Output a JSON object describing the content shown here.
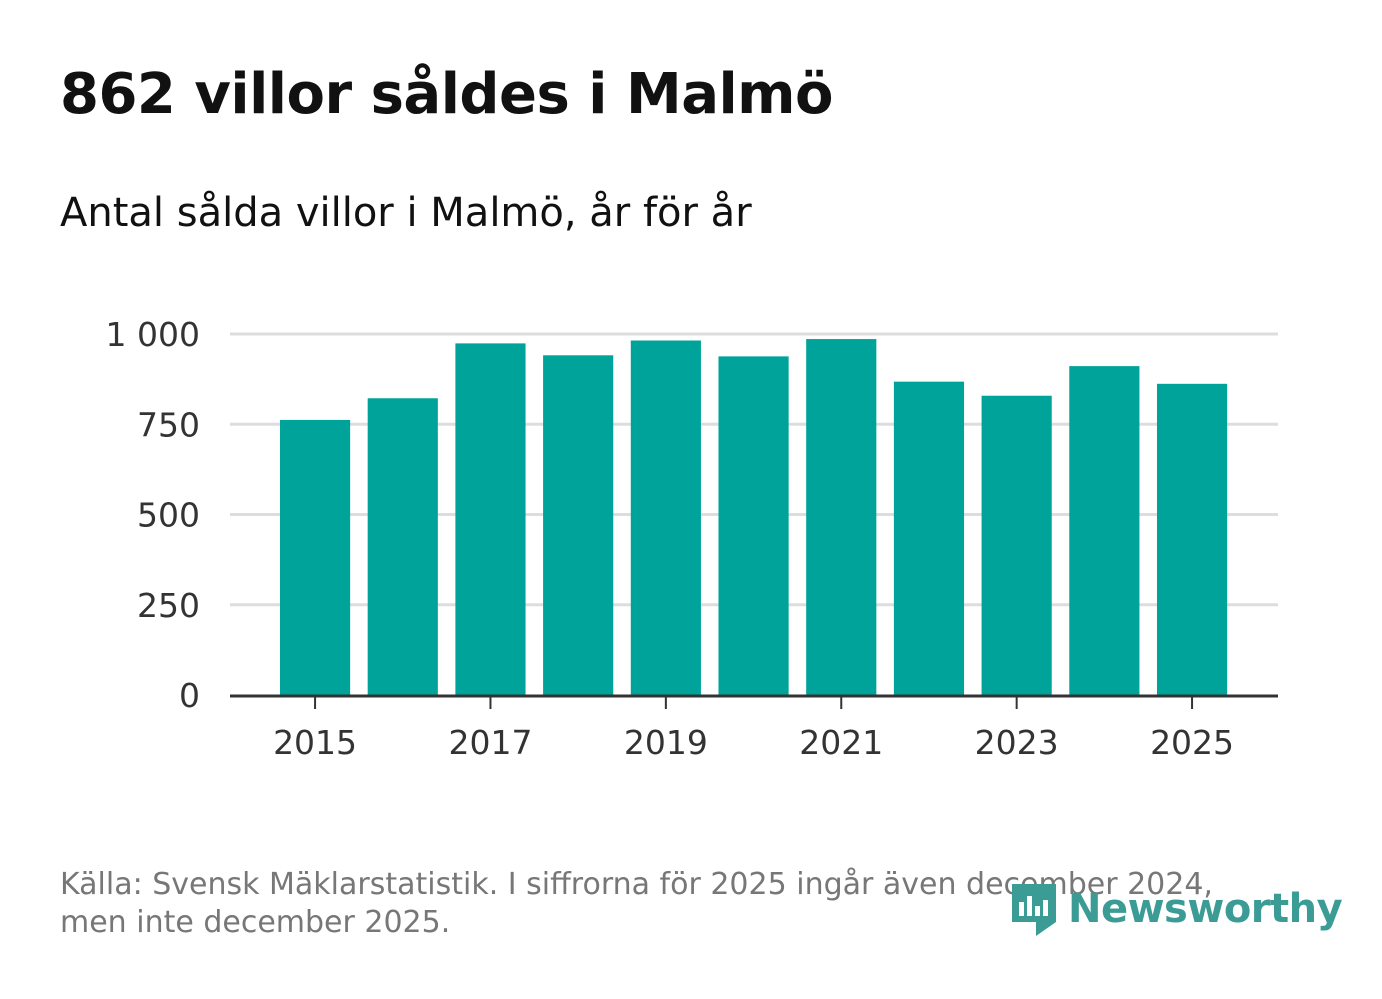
{
  "header": {
    "title": "862 villor såldes i Malmö",
    "subtitle": "Antal sålda villor i Malmö, år för år"
  },
  "chart_data": {
    "type": "bar",
    "title": "862 villor såldes i Malmö",
    "subtitle": "Antal sålda villor i Malmö, år för år",
    "categories": [
      "2015",
      "2016",
      "2017",
      "2018",
      "2019",
      "2020",
      "2021",
      "2022",
      "2023",
      "2024",
      "2025"
    ],
    "values": [
      762,
      822,
      974,
      941,
      982,
      938,
      986,
      868,
      829,
      911,
      862
    ],
    "ylim": [
      0,
      1000
    ],
    "yticks": [
      0,
      250,
      500,
      750,
      1000
    ],
    "ytick_labels": [
      "0",
      "250",
      "500",
      "750",
      "1 000"
    ],
    "xtick_labels": [
      "2015",
      "2017",
      "2019",
      "2021",
      "2023",
      "2025"
    ],
    "xlabel": "",
    "ylabel": "",
    "grid": true,
    "bar_color": "#00a39a",
    "grid_color": "#dddddd",
    "axis_color": "#333333"
  },
  "footer": {
    "source_line1": "Källa: Svensk Mäklarstatistik. I siffrorna för 2025 ingår även december 2024,",
    "source_line2": "men inte december 2025."
  },
  "logo": {
    "text": "Newsworthy",
    "icon": "newsworthy-logo-icon",
    "color": "#3a9c95"
  }
}
